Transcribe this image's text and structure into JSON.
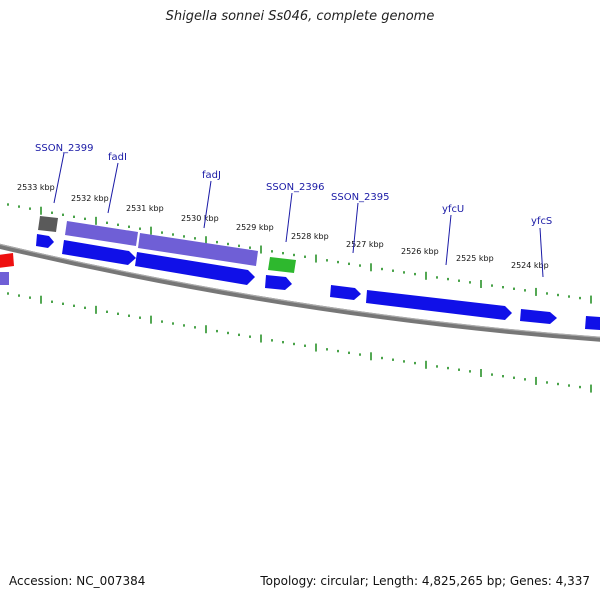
{
  "map": {
    "title": "Shigella sonnei Ss046, complete genome",
    "accession": "Accession: NC_007384",
    "summary": "Topology: circular; Length: 4,825,265 bp; Genes: 4,337"
  },
  "ticks": [
    "2533 kbp",
    "2532 kbp",
    "2531 kbp",
    "2530 kbp",
    "2529 kbp",
    "2528 kbp",
    "2527 kbp",
    "2526 kbp",
    "2525 kbp",
    "2524 kbp"
  ],
  "genes": [
    "SSON_2399",
    "fadI",
    "fadJ",
    "SSON_2396",
    "SSON_2395",
    "yfcU",
    "yfcS"
  ],
  "colors": {
    "cds_blue": "#1010e8",
    "cds_purple": "#7060d8",
    "cds_gray": "#606060",
    "cds_green": "#30c030",
    "cds_red": "#ee1010",
    "tick_green": "#1a8a1a",
    "backbone": "#808080",
    "label_blue": "#1a1aa6"
  }
}
